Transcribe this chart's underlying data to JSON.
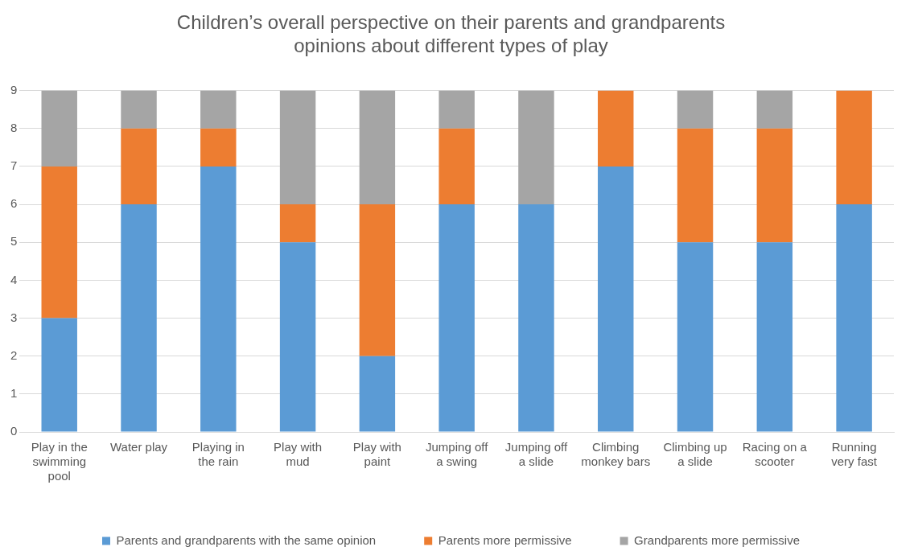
{
  "chart_data": {
    "type": "bar",
    "title": "Children’s overall perspective on their parents and grandparents opinions about different types of play",
    "categories": [
      "Play in the swimming pool",
      "Water play",
      "Playing in the rain",
      "Play with mud",
      "Play with paint",
      "Jumping off a swing",
      "Jumping off a slide",
      "Climbing monkey bars",
      "Climbing up a slide",
      "Racing on a scooter",
      "Running very fast"
    ],
    "series": [
      {
        "name": "Parents and grandparents with the same opinion",
        "color": "#5b9bd5",
        "values": [
          3,
          6,
          7,
          5,
          2,
          6,
          6,
          7,
          5,
          5,
          6
        ]
      },
      {
        "name": "Parents more permissive",
        "color": "#ed7d31",
        "values": [
          4,
          2,
          1,
          1,
          4,
          2,
          0,
          2,
          3,
          3,
          3
        ]
      },
      {
        "name": "Grandparents more permissive",
        "color": "#a5a5a5",
        "values": [
          2,
          1,
          1,
          3,
          3,
          1,
          3,
          0,
          1,
          1,
          0
        ]
      }
    ],
    "stacked": true,
    "ylim": [
      0,
      9
    ],
    "yticks": [
      0,
      1,
      2,
      3,
      4,
      5,
      6,
      7,
      8,
      9
    ],
    "grid": "y",
    "legend": "bottom"
  }
}
